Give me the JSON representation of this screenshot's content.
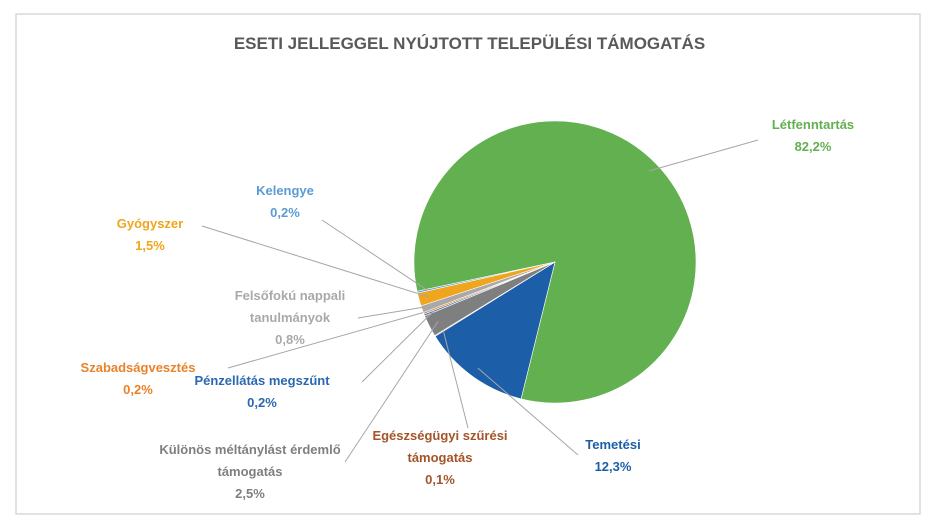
{
  "chart_data": {
    "type": "pie",
    "title": "ESETI JELLEGGEL NYÚJTOTT TELEPÜLÉSI TÁMOGATÁS",
    "categories": [
      "Létfenntartás",
      "Temetési",
      "Egészségügyi szűrési támogatás",
      "Különös méltánylást érdemlő támogatás",
      "Pénzellátás megszűnt",
      "Szabadságvesztés",
      "Felsőfokú nappali tanulmányok",
      "Gyógyszer",
      "Kelengye"
    ],
    "values": [
      82.2,
      12.3,
      0.1,
      2.5,
      0.2,
      0.2,
      0.8,
      1.5,
      0.2
    ],
    "value_labels": [
      "82,2%",
      "12,3%",
      "0,1%",
      "2,5%",
      "0,2%",
      "0,2%",
      "0,8%",
      "1,5%",
      "0,2%"
    ],
    "colors": [
      "#62b04f",
      "#1d5ea8",
      "#a5542a",
      "#7f7f7f",
      "#2b68b0",
      "#e8832a",
      "#a9a9a9",
      "#efa51d",
      "#5b9bd5"
    ]
  }
}
